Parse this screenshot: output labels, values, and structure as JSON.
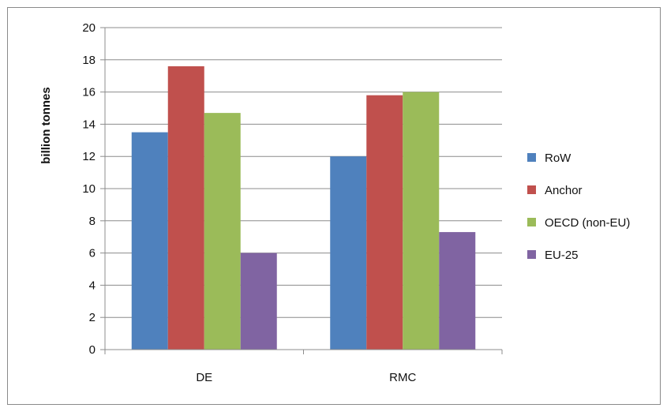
{
  "chart_data": {
    "type": "bar",
    "title": "",
    "xlabel": "",
    "ylabel": "billion tonnes",
    "categories": [
      "DE",
      "RMC"
    ],
    "ylim": [
      0,
      20
    ],
    "yticks": [
      0,
      2,
      4,
      6,
      8,
      10,
      12,
      14,
      16,
      18,
      20
    ],
    "grid": true,
    "legend_position": "right",
    "series": [
      {
        "name": "RoW",
        "color": "#4f81bd",
        "values": [
          13.5,
          12.0
        ]
      },
      {
        "name": "Anchor",
        "color": "#c0504d",
        "values": [
          17.6,
          15.8
        ]
      },
      {
        "name": "OECD (non-EU)",
        "color": "#9bbb59",
        "values": [
          14.7,
          16.0
        ]
      },
      {
        "name": "EU-25",
        "color": "#8064a2",
        "values": [
          6.0,
          7.3
        ]
      }
    ]
  }
}
